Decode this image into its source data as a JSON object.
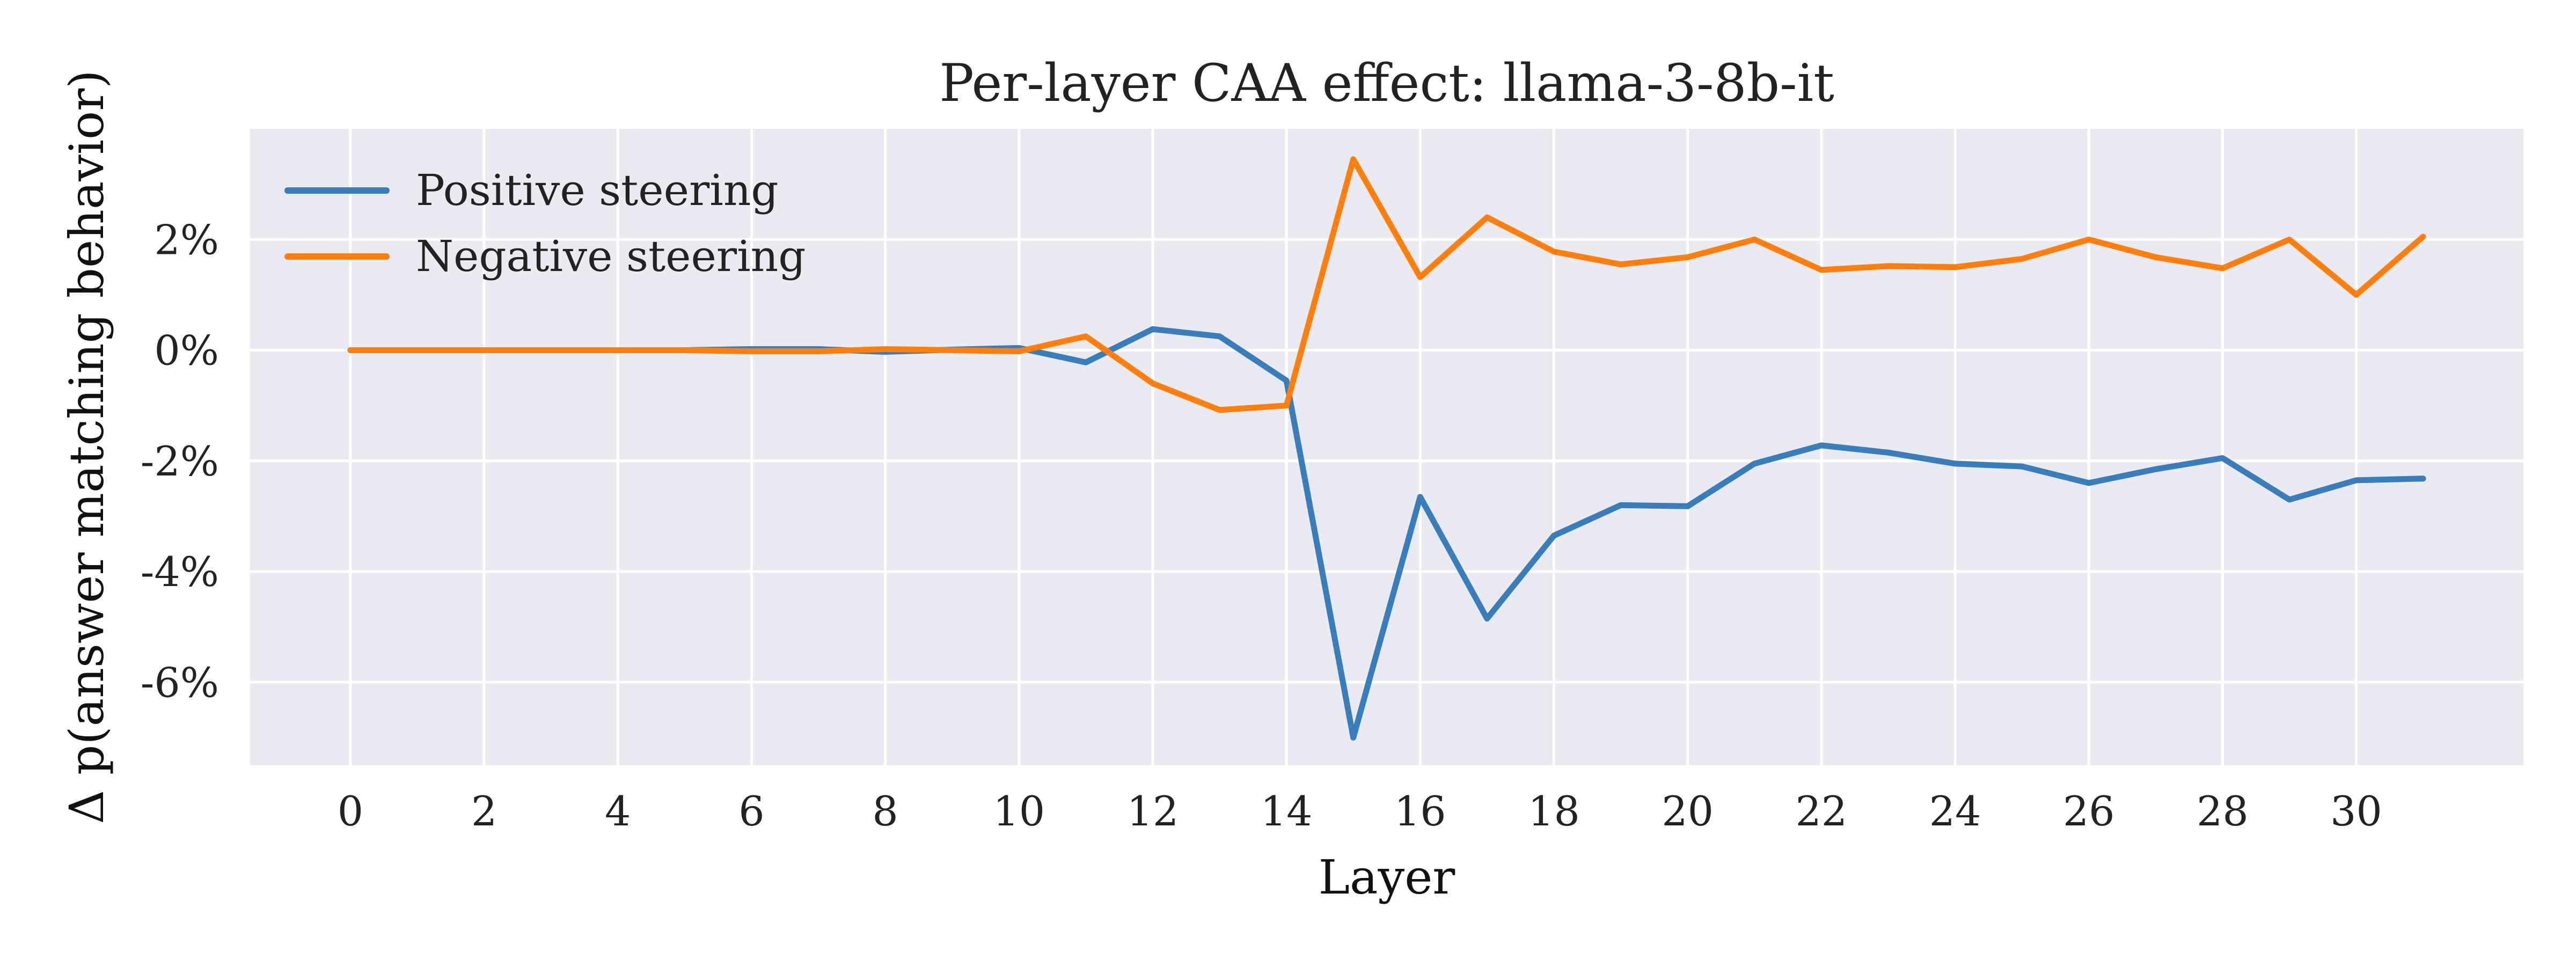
{
  "chart_data": {
    "type": "line",
    "title": "Per-layer CAA effect: llama-3-8b-it",
    "xlabel": "Layer",
    "ylabel": "Δ p(answer matching behavior)",
    "x": [
      0,
      1,
      2,
      3,
      4,
      5,
      6,
      7,
      8,
      9,
      10,
      11,
      12,
      13,
      14,
      15,
      16,
      17,
      18,
      19,
      20,
      21,
      22,
      23,
      24,
      25,
      26,
      27,
      28,
      29,
      30,
      31
    ],
    "xticks": [
      0,
      2,
      4,
      6,
      8,
      10,
      12,
      14,
      16,
      18,
      20,
      22,
      24,
      26,
      28,
      30
    ],
    "xtick_labels": [
      "0",
      "2",
      "4",
      "6",
      "8",
      "10",
      "12",
      "14",
      "16",
      "18",
      "20",
      "22",
      "24",
      "26",
      "28",
      "30"
    ],
    "yticks": [
      -6,
      -4,
      -2,
      0,
      2
    ],
    "ytick_labels": [
      "-6%",
      "-4%",
      "-2%",
      "0%",
      "2%"
    ],
    "xlim": [
      -1.5,
      32.5
    ],
    "ylim": [
      -7.5,
      4.0
    ],
    "grid": true,
    "legend_position": "upper-left",
    "series": [
      {
        "name": "Positive steering",
        "color": "#3a7dbb",
        "values": [
          0.0,
          0.0,
          0.0,
          0.0,
          0.0,
          0.0,
          0.02,
          0.02,
          -0.03,
          0.01,
          0.04,
          -0.22,
          0.38,
          0.25,
          -0.55,
          -7.0,
          -2.65,
          -4.85,
          -3.35,
          -2.8,
          -2.82,
          -2.05,
          -1.72,
          -1.85,
          -2.05,
          -2.1,
          -2.4,
          -2.15,
          -1.95,
          -2.7,
          -2.35,
          -2.32
        ]
      },
      {
        "name": "Negative steering",
        "color": "#ff7f0e",
        "values": [
          0.0,
          0.0,
          0.0,
          0.0,
          0.0,
          0.0,
          -0.02,
          -0.02,
          0.02,
          0.0,
          -0.02,
          0.25,
          -0.6,
          -1.08,
          -1.0,
          3.45,
          1.32,
          2.4,
          1.78,
          1.55,
          1.68,
          2.0,
          1.45,
          1.52,
          1.5,
          1.65,
          2.0,
          1.68,
          1.48,
          2.0,
          1.0,
          2.05
        ]
      }
    ]
  }
}
